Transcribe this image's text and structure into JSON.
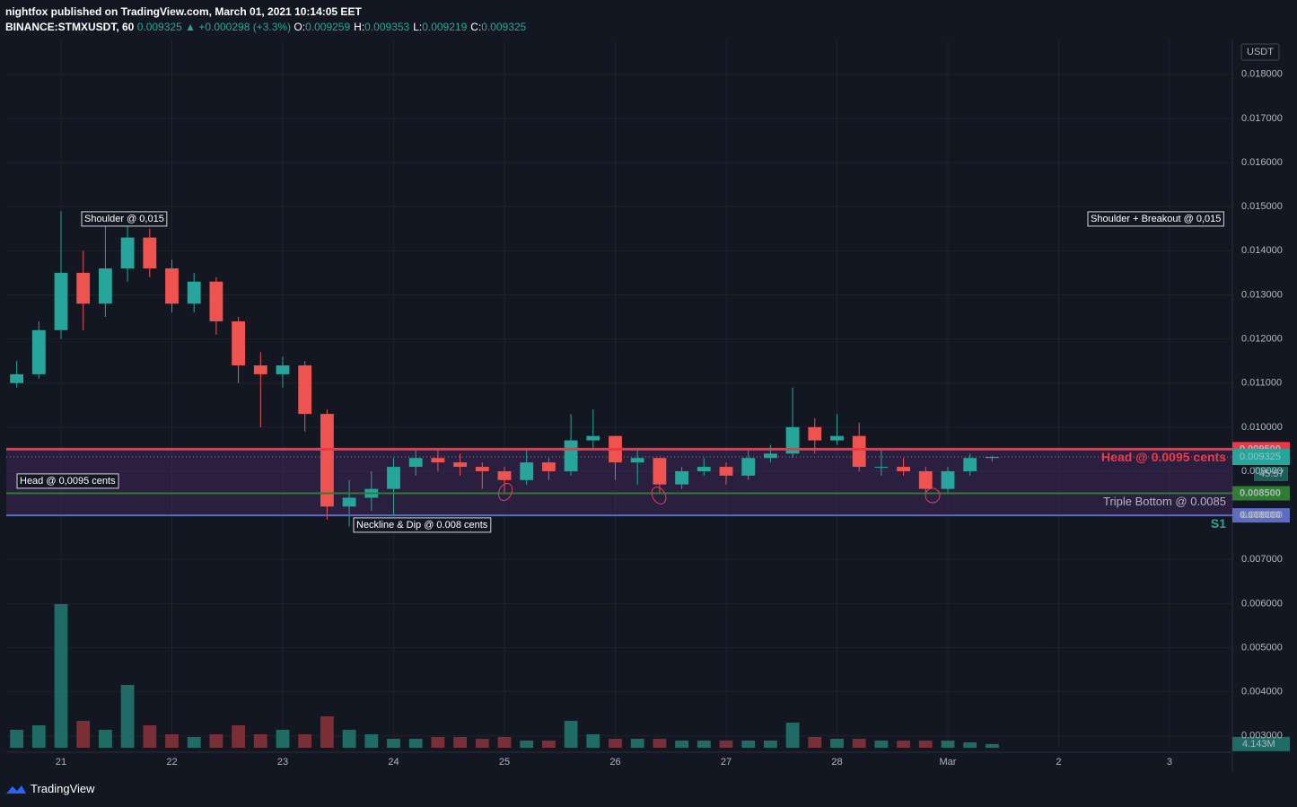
{
  "header": {
    "publisher": "nightfox published on TradingView.com, March 01, 2021 10:14:05 EET",
    "symbol": "BINANCE:STMXUSDT, 60",
    "last": "0.009325",
    "change": "▲ +0.000298 (+3.3%)",
    "ohlc": [
      {
        "label": "O:",
        "value": "0.009259"
      },
      {
        "label": "H:",
        "value": "0.009353"
      },
      {
        "label": "L:",
        "value": "0.009219"
      },
      {
        "label": "C:",
        "value": "0.009325"
      }
    ]
  },
  "footer": {
    "brand": "TradingView"
  },
  "chart_data": {
    "type": "candlestick",
    "currency": "USDT",
    "x": [
      20.6,
      20.8,
      21.0,
      21.2,
      21.4,
      21.6,
      21.8,
      22.0,
      22.2,
      22.4,
      22.6,
      22.8,
      23.0,
      23.2,
      23.4,
      23.6,
      23.8,
      24.0,
      24.2,
      24.4,
      24.6,
      24.8,
      25.0,
      25.2,
      25.4,
      25.6,
      25.8,
      26.0,
      26.2,
      26.4,
      26.6,
      26.8,
      27.0,
      27.2,
      27.4,
      27.6,
      27.8,
      28.0,
      28.2,
      28.4,
      28.6,
      28.8,
      29.0,
      29.2,
      29.4
    ],
    "open": [
      0.011,
      0.0112,
      0.0122,
      0.0135,
      0.0128,
      0.0136,
      0.0143,
      0.0136,
      0.0128,
      0.0133,
      0.0124,
      0.0114,
      0.0112,
      0.0114,
      0.0103,
      0.0082,
      0.0084,
      0.0086,
      0.0091,
      0.0093,
      0.0092,
      0.0091,
      0.009,
      0.0088,
      0.0092,
      0.009,
      0.0097,
      0.0098,
      0.0092,
      0.0093,
      0.0087,
      0.009,
      0.0091,
      0.0089,
      0.0093,
      0.0094,
      0.01,
      0.0097,
      0.0098,
      0.0091,
      0.0091,
      0.009,
      0.0086,
      0.009,
      0.0093
    ],
    "high": [
      0.0115,
      0.0124,
      0.0149,
      0.014,
      0.0146,
      0.0149,
      0.0145,
      0.0138,
      0.0135,
      0.0134,
      0.0125,
      0.0117,
      0.0116,
      0.0115,
      0.0104,
      0.0088,
      0.009,
      0.0093,
      0.0095,
      0.0095,
      0.0094,
      0.0092,
      0.0091,
      0.0095,
      0.0093,
      0.0103,
      0.0104,
      0.0098,
      0.0095,
      0.0093,
      0.0091,
      0.0093,
      0.0092,
      0.0095,
      0.0096,
      0.0109,
      0.0102,
      0.0103,
      0.0101,
      0.0095,
      0.0093,
      0.0091,
      0.0091,
      0.0094,
      0.009353
    ],
    "low": [
      0.0109,
      0.0111,
      0.012,
      0.0122,
      0.0125,
      0.0133,
      0.0134,
      0.0126,
      0.0126,
      0.0121,
      0.011,
      0.01,
      0.0109,
      0.0099,
      0.0079,
      0.00775,
      0.0081,
      0.008,
      0.0089,
      0.009,
      0.0089,
      0.0086,
      0.0085,
      0.0087,
      0.0088,
      0.0089,
      0.0095,
      0.0088,
      0.0087,
      0.0085,
      0.0086,
      0.0089,
      0.0087,
      0.0088,
      0.0092,
      0.0093,
      0.0094,
      0.0096,
      0.009,
      0.0089,
      0.0089,
      0.0085,
      0.0085,
      0.0089,
      0.009219
    ],
    "close": [
      0.0112,
      0.0122,
      0.0135,
      0.0128,
      0.0136,
      0.0143,
      0.0136,
      0.0128,
      0.0133,
      0.0124,
      0.0114,
      0.0112,
      0.0114,
      0.0103,
      0.0082,
      0.0084,
      0.0086,
      0.0091,
      0.0093,
      0.0092,
      0.0091,
      0.009,
      0.0088,
      0.0092,
      0.009,
      0.0097,
      0.0098,
      0.0092,
      0.0093,
      0.0087,
      0.009,
      0.0091,
      0.0089,
      0.0093,
      0.0094,
      0.01,
      0.0097,
      0.0098,
      0.0091,
      0.0091,
      0.009,
      0.0086,
      0.009,
      0.0093,
      0.009325
    ],
    "volume": [
      20,
      25,
      160,
      30,
      20,
      70,
      25,
      15,
      12,
      15,
      25,
      15,
      20,
      15,
      35,
      20,
      15,
      10,
      10,
      12,
      12,
      10,
      12,
      8,
      8,
      30,
      15,
      10,
      10,
      10,
      8,
      8,
      8,
      8,
      8,
      28,
      12,
      10,
      10,
      8,
      8,
      8,
      8,
      6,
      4.143
    ],
    "volume_lim": [
      0,
      200
    ],
    "last_volume": {
      "value": 4.143,
      "label": "4.143M"
    },
    "up_color": "#26a69a",
    "down_color": "#ef5350",
    "up_volume_color": "#1f6b66",
    "down_volume_color": "#7a2e35",
    "xlim": [
      20.506,
      31.567
    ],
    "xticks": [
      21,
      22,
      23,
      24,
      25,
      26,
      27,
      28,
      {
        "value": 29,
        "label": "Mar"
      },
      {
        "value": 30,
        "label": "2"
      },
      {
        "value": 31,
        "label": "3"
      }
    ],
    "ylim": [
      0.00273,
      0.01877
    ],
    "yticks": [
      {
        "value": 0.003,
        "label": "0.003000"
      },
      {
        "value": 0.004,
        "label": "0.004000"
      },
      {
        "value": 0.005,
        "label": "0.005000"
      },
      {
        "value": 0.006,
        "label": "0.006000"
      },
      {
        "value": 0.007,
        "label": "0.007000"
      },
      {
        "value": 0.008,
        "label": "0.008000"
      },
      {
        "value": 0.009,
        "label": "0.009000"
      },
      {
        "value": 0.01,
        "label": "0.010000"
      },
      {
        "value": 0.011,
        "label": "0.011000"
      },
      {
        "value": 0.012,
        "label": "0.012000"
      },
      {
        "value": 0.013,
        "label": "0.013000"
      },
      {
        "value": 0.014,
        "label": "0.014000"
      },
      {
        "value": 0.015,
        "label": "0.015000"
      },
      {
        "value": 0.016,
        "label": "0.016000"
      },
      {
        "value": 0.017,
        "label": "0.017000"
      },
      {
        "value": 0.018,
        "label": "0.018000"
      }
    ],
    "grid": true,
    "hlines": [
      {
        "value": 0.0095,
        "axis_label": "0.009500",
        "text": "Head @ 0.0095 cents",
        "color": "#f23645"
      },
      {
        "value": 0.0085,
        "axis_label": "0.008500",
        "text": "Triple Bottom @ 0.0085",
        "color": "#2e7d32"
      },
      {
        "value": 0.008,
        "axis_label": "0.008000",
        "text": "S1",
        "color": "#5b6cc2"
      }
    ],
    "band_color": "#4a2a66",
    "last_price": {
      "value": 0.009325,
      "label": "0.009325",
      "countdown": "45:57"
    },
    "annotations": [
      "Shoulder @ 0,015",
      "Shoulder + Breakout @ 0,015",
      "Head @ 0,0095 cents",
      "Neckline & Dip @ 0.008 cents"
    ]
  }
}
